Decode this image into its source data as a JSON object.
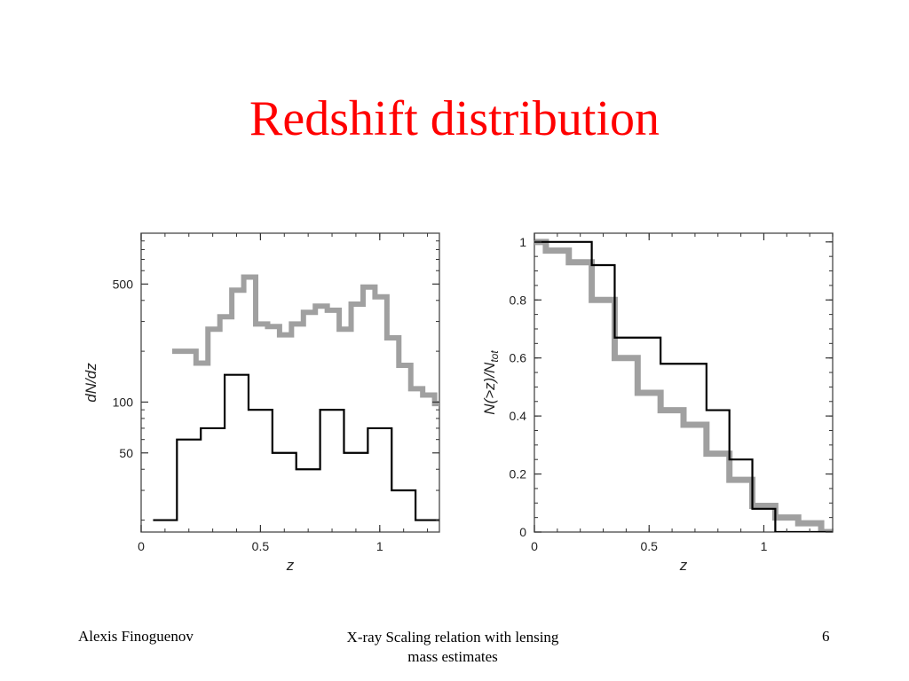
{
  "slide": {
    "title": "Redshift distribution",
    "footer_left": "Alexis Finoguenov",
    "footer_center_line1": "X-ray Scaling relation with lensing",
    "footer_center_line2": "mass estimates",
    "footer_right": "6"
  },
  "colors": {
    "title": "#ff0000",
    "series_black": "#000000",
    "series_gray": "#a0a0a0"
  },
  "chart_data": [
    {
      "type": "line",
      "step": true,
      "xlabel": "z",
      "ylabel": "dN/dz",
      "xlim": [
        0,
        1.25
      ],
      "ylim": [
        17,
        1000
      ],
      "yscale": "log",
      "xticks": [
        0,
        0.5,
        1
      ],
      "xtick_labels": [
        "0",
        "0.5",
        "1"
      ],
      "yticks": [
        50,
        100,
        500
      ],
      "ytick_labels": [
        "50",
        "100",
        "500"
      ],
      "grid": false,
      "series": [
        {
          "color": "gray",
          "bin_edges": [
            0.13,
            0.23,
            0.28,
            0.33,
            0.38,
            0.43,
            0.48,
            0.53,
            0.58,
            0.63,
            0.68,
            0.73,
            0.78,
            0.83,
            0.88,
            0.93,
            0.98,
            1.03,
            1.08,
            1.13,
            1.18,
            1.23,
            1.28
          ],
          "values": [
            200,
            170,
            270,
            320,
            460,
            550,
            290,
            280,
            250,
            290,
            340,
            370,
            350,
            270,
            380,
            480,
            420,
            240,
            165,
            120,
            110,
            98
          ]
        },
        {
          "color": "black",
          "bin_edges": [
            0.05,
            0.15,
            0.25,
            0.35,
            0.45,
            0.55,
            0.65,
            0.75,
            0.85,
            0.95,
            1.05,
            1.15,
            1.25
          ],
          "values": [
            20,
            60,
            70,
            145,
            90,
            50,
            40,
            90,
            50,
            70,
            30,
            20
          ]
        }
      ]
    },
    {
      "type": "line",
      "step": true,
      "xlabel": "z",
      "ylabel": "N(>z)/N_tot",
      "xlim": [
        0,
        1.3
      ],
      "ylim": [
        0,
        1.03
      ],
      "xticks": [
        0,
        0.5,
        1
      ],
      "xtick_labels": [
        "0",
        "0.5",
        "1"
      ],
      "yticks": [
        0,
        0.2,
        0.4,
        0.6,
        0.8,
        1
      ],
      "ytick_labels": [
        "0",
        "0.2",
        "0.4",
        "0.6",
        "0.8",
        "1"
      ],
      "grid": false,
      "series": [
        {
          "color": "gray",
          "bin_edges": [
            0,
            0.05,
            0.15,
            0.25,
            0.35,
            0.45,
            0.55,
            0.65,
            0.75,
            0.85,
            0.95,
            1.05,
            1.15,
            1.25,
            1.3
          ],
          "values": [
            1,
            0.97,
            0.93,
            0.8,
            0.6,
            0.48,
            0.42,
            0.37,
            0.27,
            0.18,
            0.09,
            0.05,
            0.03,
            0.0
          ]
        },
        {
          "color": "black",
          "bin_edges": [
            0,
            0.25,
            0.35,
            0.55,
            0.75,
            0.85,
            0.95,
            1.05
          ],
          "values": [
            1,
            0.92,
            0.67,
            0.58,
            0.42,
            0.25,
            0.08
          ]
        }
      ]
    }
  ]
}
